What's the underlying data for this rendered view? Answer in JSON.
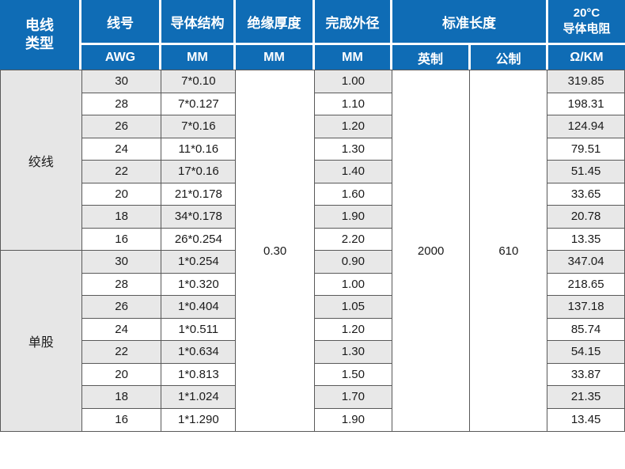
{
  "chart_data": {
    "type": "table",
    "header": {
      "wire_type_lines": [
        "电线",
        "类型"
      ],
      "wire_no_top": "线号",
      "wire_no_sub": "AWG",
      "conductor_top": "导体结构",
      "conductor_sub": "MM",
      "insulation_top": "绝缘厚度",
      "insulation_sub": "MM",
      "od_top": "完成外径",
      "od_sub": "MM",
      "std_length_top": "标准长度",
      "imperial_sub": "英制",
      "metric_sub": "公制",
      "resistance_top_lines": [
        "20°C",
        "导体电阻"
      ],
      "resistance_sub": "Ω/KM"
    },
    "spans": {
      "insulation_value": "0.30",
      "imperial_value": "2000",
      "metric_value": "610"
    },
    "sections": [
      {
        "type": "绞线",
        "rows": [
          {
            "awg": "30",
            "conductor": "7*0.10",
            "od": "1.00",
            "resistance": "319.85"
          },
          {
            "awg": "28",
            "conductor": "7*0.127",
            "od": "1.10",
            "resistance": "198.31"
          },
          {
            "awg": "26",
            "conductor": "7*0.16",
            "od": "1.20",
            "resistance": "124.94"
          },
          {
            "awg": "24",
            "conductor": "11*0.16",
            "od": "1.30",
            "resistance": "79.51"
          },
          {
            "awg": "22",
            "conductor": "17*0.16",
            "od": "1.40",
            "resistance": "51.45"
          },
          {
            "awg": "20",
            "conductor": "21*0.178",
            "od": "1.60",
            "resistance": "33.65"
          },
          {
            "awg": "18",
            "conductor": "34*0.178",
            "od": "1.90",
            "resistance": "20.78"
          },
          {
            "awg": "16",
            "conductor": "26*0.254",
            "od": "2.20",
            "resistance": "13.35"
          }
        ]
      },
      {
        "type": "单股",
        "rows": [
          {
            "awg": "30",
            "conductor": "1*0.254",
            "od": "0.90",
            "resistance": "347.04"
          },
          {
            "awg": "28",
            "conductor": "1*0.320",
            "od": "1.00",
            "resistance": "218.65"
          },
          {
            "awg": "26",
            "conductor": "1*0.404",
            "od": "1.05",
            "resistance": "137.18"
          },
          {
            "awg": "24",
            "conductor": "1*0.511",
            "od": "1.20",
            "resistance": "85.74"
          },
          {
            "awg": "22",
            "conductor": "1*0.634",
            "od": "1.30",
            "resistance": "54.15"
          },
          {
            "awg": "20",
            "conductor": "1*0.813",
            "od": "1.50",
            "resistance": "33.87"
          },
          {
            "awg": "18",
            "conductor": "1*1.024",
            "od": "1.70",
            "resistance": "21.35"
          },
          {
            "awg": "16",
            "conductor": "1*1.290",
            "od": "1.90",
            "resistance": "13.45"
          }
        ]
      }
    ]
  },
  "colors": {
    "header_bg": "#0f6cb5",
    "header_text": "#ffffff",
    "stripe": "#e8e8e8",
    "group_bg": "#e6e6e6",
    "border": "#595959",
    "text": "#1a1a1a"
  }
}
